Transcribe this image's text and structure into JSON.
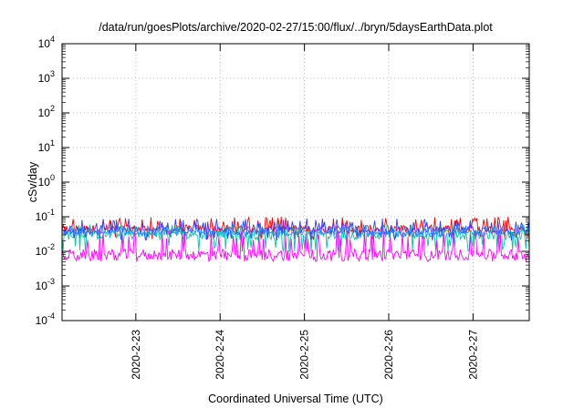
{
  "chart_data": {
    "type": "line",
    "title": "/data/run/goesPlots/archive/2020-02-27/15:00/flux/../bryn/5daysEarthData.plot",
    "xlabel": "Coordinated Universal Time (UTC)",
    "ylabel": "cSv/day",
    "yscale": "log",
    "ylim": [
      0.0001,
      10000
    ],
    "xlim": [
      "2020-02-22 03:00",
      "2020-02-27 16:00"
    ],
    "x_ticks": [
      "2020-2-23",
      "2020-2-24",
      "2020-2-25",
      "2020-2-26",
      "2020-2-27"
    ],
    "y_ticks": [
      {
        "base": "10",
        "exp": "4",
        "value": 10000
      },
      {
        "base": "10",
        "exp": "3",
        "value": 1000
      },
      {
        "base": "10",
        "exp": "2",
        "value": 100
      },
      {
        "base": "10",
        "exp": "1",
        "value": 10
      },
      {
        "base": "10",
        "exp": "0",
        "value": 1
      },
      {
        "base": "10",
        "exp": "-1",
        "value": 0.1
      },
      {
        "base": "10",
        "exp": "-2",
        "value": 0.01
      },
      {
        "base": "10",
        "exp": "-3",
        "value": 0.001
      },
      {
        "base": "10",
        "exp": "-4",
        "value": 0.0001
      }
    ],
    "grid": true,
    "legend": "none",
    "series": [
      {
        "color": "#ff0000",
        "typical": 0.045,
        "low": 0.022,
        "high": 0.1
      },
      {
        "color": "#00c8a0",
        "typical": 0.03,
        "low": 0.01,
        "high": 0.06
      },
      {
        "color": "#3a3aff",
        "typical": 0.04,
        "low": 0.02,
        "high": 0.09
      },
      {
        "color": "#1e90ff",
        "typical": 0.035,
        "low": 0.025,
        "high": 0.06
      },
      {
        "color": "#ff00ff",
        "typical": 0.008,
        "low": 0.005,
        "high": 0.04
      }
    ]
  }
}
